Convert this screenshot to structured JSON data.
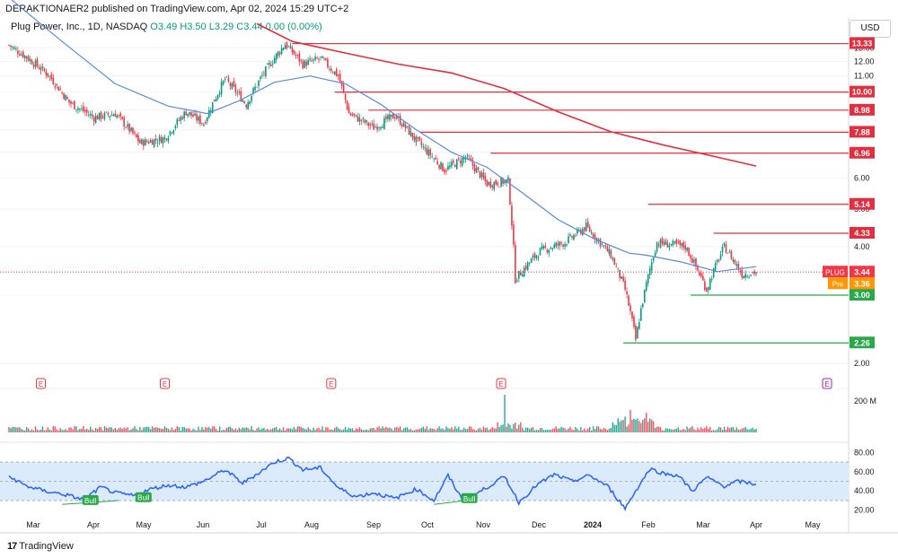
{
  "header": {
    "published": "DERAKTIONAER2 published on TradingView.com, Apr 02, 2024 15:29 UTC+2",
    "symbol_line": "Plug Power, Inc., 1D, NASDAQ",
    "ohlc": "O3.49 H3.50 L3.29 C3.44 0.00 (0.00%)"
  },
  "currency_button": "USD",
  "branding": {
    "logo": "17",
    "name": "TradingView"
  },
  "colors": {
    "up": "#089981",
    "down": "#f23645",
    "sma_fast": "#5b8ad6",
    "sma_slow": "#e0303f",
    "resistance": "#e0303f",
    "support": "#2ba84a",
    "rsi_line": "#2962ff",
    "rsi_band": "#dcebfb"
  },
  "chart_data": [
    {
      "type": "candlestick",
      "title": "Plug Power, Inc., 1D, NASDAQ",
      "x_ticks": [
        "Mar",
        "Apr",
        "May",
        "Jun",
        "Jul",
        "Aug",
        "Sep",
        "Oct",
        "Nov",
        "Dec",
        "2024",
        "Feb",
        "Mar",
        "Apr",
        "May"
      ],
      "y_ticks": [
        "2.00",
        "3.00",
        "4.00",
        "5.00",
        "6.00",
        "7.00",
        "8.00",
        "9.00",
        "10.00",
        "11.00",
        "12.00",
        "13.00"
      ],
      "ylim": [
        1.95,
        14.1
      ],
      "scale": "log",
      "close_path": [
        {
          "x": 0,
          "y": 13.2
        },
        {
          "x": 10,
          "y": 12.3
        },
        {
          "x": 22,
          "y": 11.1
        },
        {
          "x": 34,
          "y": 9.4
        },
        {
          "x": 48,
          "y": 8.6
        },
        {
          "x": 60,
          "y": 8.8
        },
        {
          "x": 74,
          "y": 7.4
        },
        {
          "x": 88,
          "y": 7.6
        },
        {
          "x": 100,
          "y": 8.9
        },
        {
          "x": 110,
          "y": 8.3
        },
        {
          "x": 122,
          "y": 10.8
        },
        {
          "x": 134,
          "y": 9.3
        },
        {
          "x": 144,
          "y": 11.2
        },
        {
          "x": 156,
          "y": 13.3
        },
        {
          "x": 166,
          "y": 11.8
        },
        {
          "x": 176,
          "y": 12.2
        },
        {
          "x": 186,
          "y": 11.0
        },
        {
          "x": 192,
          "y": 8.8
        },
        {
          "x": 206,
          "y": 8.1
        },
        {
          "x": 218,
          "y": 8.7
        },
        {
          "x": 230,
          "y": 7.5
        },
        {
          "x": 246,
          "y": 6.3
        },
        {
          "x": 258,
          "y": 6.8
        },
        {
          "x": 270,
          "y": 5.8
        },
        {
          "x": 282,
          "y": 5.9
        },
        {
          "x": 286,
          "y": 3.3
        },
        {
          "x": 300,
          "y": 3.9
        },
        {
          "x": 314,
          "y": 4.1
        },
        {
          "x": 326,
          "y": 4.5
        },
        {
          "x": 340,
          "y": 3.8
        },
        {
          "x": 348,
          "y": 3.1
        },
        {
          "x": 354,
          "y": 2.3
        },
        {
          "x": 366,
          "y": 4.1
        },
        {
          "x": 382,
          "y": 4.0
        },
        {
          "x": 394,
          "y": 3.1
        },
        {
          "x": 404,
          "y": 4.0
        },
        {
          "x": 414,
          "y": 3.4
        },
        {
          "x": 422,
          "y": 3.44
        }
      ],
      "sma_fast_path": [
        {
          "x": 0,
          "y": 17.5
        },
        {
          "x": 30,
          "y": 13.5
        },
        {
          "x": 60,
          "y": 10.5
        },
        {
          "x": 90,
          "y": 9.2
        },
        {
          "x": 112,
          "y": 8.8
        },
        {
          "x": 130,
          "y": 9.5
        },
        {
          "x": 150,
          "y": 10.6
        },
        {
          "x": 170,
          "y": 11.0
        },
        {
          "x": 190,
          "y": 10.5
        },
        {
          "x": 210,
          "y": 9.3
        },
        {
          "x": 230,
          "y": 8.0
        },
        {
          "x": 250,
          "y": 7.0
        },
        {
          "x": 270,
          "y": 6.4
        },
        {
          "x": 290,
          "y": 5.5
        },
        {
          "x": 310,
          "y": 4.7
        },
        {
          "x": 330,
          "y": 4.2
        },
        {
          "x": 350,
          "y": 3.85
        },
        {
          "x": 360,
          "y": 3.8
        },
        {
          "x": 380,
          "y": 3.65
        },
        {
          "x": 400,
          "y": 3.45
        },
        {
          "x": 422,
          "y": 3.55
        }
      ],
      "sma_slow_path": [
        {
          "x": 140,
          "y": 15.0
        },
        {
          "x": 160,
          "y": 13.5
        },
        {
          "x": 190,
          "y": 12.6
        },
        {
          "x": 220,
          "y": 11.8
        },
        {
          "x": 250,
          "y": 11.2
        },
        {
          "x": 280,
          "y": 10.2
        },
        {
          "x": 310,
          "y": 8.9
        },
        {
          "x": 340,
          "y": 7.9
        },
        {
          "x": 370,
          "y": 7.3
        },
        {
          "x": 400,
          "y": 6.8
        },
        {
          "x": 422,
          "y": 6.45
        }
      ],
      "resistance_lines": [
        {
          "value": "13.33",
          "from_x": 160
        },
        {
          "value": "10.00",
          "from_x": 184
        },
        {
          "value": "8.98",
          "from_x": 203
        },
        {
          "value": "7.88",
          "from_x": 232
        },
        {
          "value": "6.96",
          "from_x": 272
        },
        {
          "value": "5.14",
          "from_x": 361
        },
        {
          "value": "4.33",
          "from_x": 398
        }
      ],
      "support_lines": [
        {
          "value": "3.00",
          "from_x": 385
        },
        {
          "value": "2.26",
          "from_x": 347
        }
      ],
      "last_price": {
        "symbol": "PLUG",
        "value": "3.44"
      },
      "premarket": {
        "label": "Pre",
        "value": "3.36"
      },
      "earnings_markers": [
        {
          "x": 18,
          "label": "E"
        },
        {
          "x": 88,
          "label": "E"
        },
        {
          "x": 182,
          "label": "E"
        },
        {
          "x": 278,
          "label": "E"
        },
        {
          "x": 460,
          "label": "E",
          "future": true
        }
      ]
    },
    {
      "type": "bar",
      "title": "Volume",
      "y_ticks": [
        "200 M"
      ],
      "spikes": [
        {
          "x": 280,
          "value": 1.0
        },
        {
          "x": 351,
          "value": 0.6
        },
        {
          "x": 360,
          "value": 0.52
        },
        {
          "x": 348,
          "value": 0.42
        }
      ]
    },
    {
      "type": "line",
      "title": "RSI",
      "y_ticks": [
        "20.00",
        "40.00",
        "60.00",
        "80.00"
      ],
      "ylim": [
        15,
        85
      ],
      "band": [
        30,
        70
      ],
      "labels": [
        {
          "text": "Bull",
          "x": 46,
          "value": 30
        },
        {
          "text": "Bull",
          "x": 76,
          "value": 33
        },
        {
          "text": "Bull",
          "x": 260,
          "value": 32
        }
      ],
      "values": [
        {
          "x": 0,
          "y": 55
        },
        {
          "x": 10,
          "y": 45
        },
        {
          "x": 20,
          "y": 40
        },
        {
          "x": 32,
          "y": 36
        },
        {
          "x": 42,
          "y": 31
        },
        {
          "x": 52,
          "y": 44
        },
        {
          "x": 60,
          "y": 38
        },
        {
          "x": 70,
          "y": 35
        },
        {
          "x": 80,
          "y": 42
        },
        {
          "x": 90,
          "y": 46
        },
        {
          "x": 100,
          "y": 44
        },
        {
          "x": 110,
          "y": 50
        },
        {
          "x": 122,
          "y": 62
        },
        {
          "x": 132,
          "y": 48
        },
        {
          "x": 142,
          "y": 60
        },
        {
          "x": 150,
          "y": 70
        },
        {
          "x": 158,
          "y": 74
        },
        {
          "x": 166,
          "y": 62
        },
        {
          "x": 176,
          "y": 64
        },
        {
          "x": 186,
          "y": 43
        },
        {
          "x": 196,
          "y": 34
        },
        {
          "x": 206,
          "y": 38
        },
        {
          "x": 218,
          "y": 32
        },
        {
          "x": 230,
          "y": 42
        },
        {
          "x": 240,
          "y": 30
        },
        {
          "x": 248,
          "y": 56
        },
        {
          "x": 256,
          "y": 31
        },
        {
          "x": 264,
          "y": 37
        },
        {
          "x": 272,
          "y": 46
        },
        {
          "x": 280,
          "y": 55
        },
        {
          "x": 288,
          "y": 28
        },
        {
          "x": 298,
          "y": 46
        },
        {
          "x": 308,
          "y": 57
        },
        {
          "x": 318,
          "y": 50
        },
        {
          "x": 328,
          "y": 56
        },
        {
          "x": 338,
          "y": 45
        },
        {
          "x": 348,
          "y": 22
        },
        {
          "x": 356,
          "y": 46
        },
        {
          "x": 362,
          "y": 63
        },
        {
          "x": 370,
          "y": 58
        },
        {
          "x": 378,
          "y": 56
        },
        {
          "x": 386,
          "y": 40
        },
        {
          "x": 394,
          "y": 54
        },
        {
          "x": 404,
          "y": 45
        },
        {
          "x": 412,
          "y": 50
        },
        {
          "x": 422,
          "y": 47
        }
      ]
    }
  ]
}
